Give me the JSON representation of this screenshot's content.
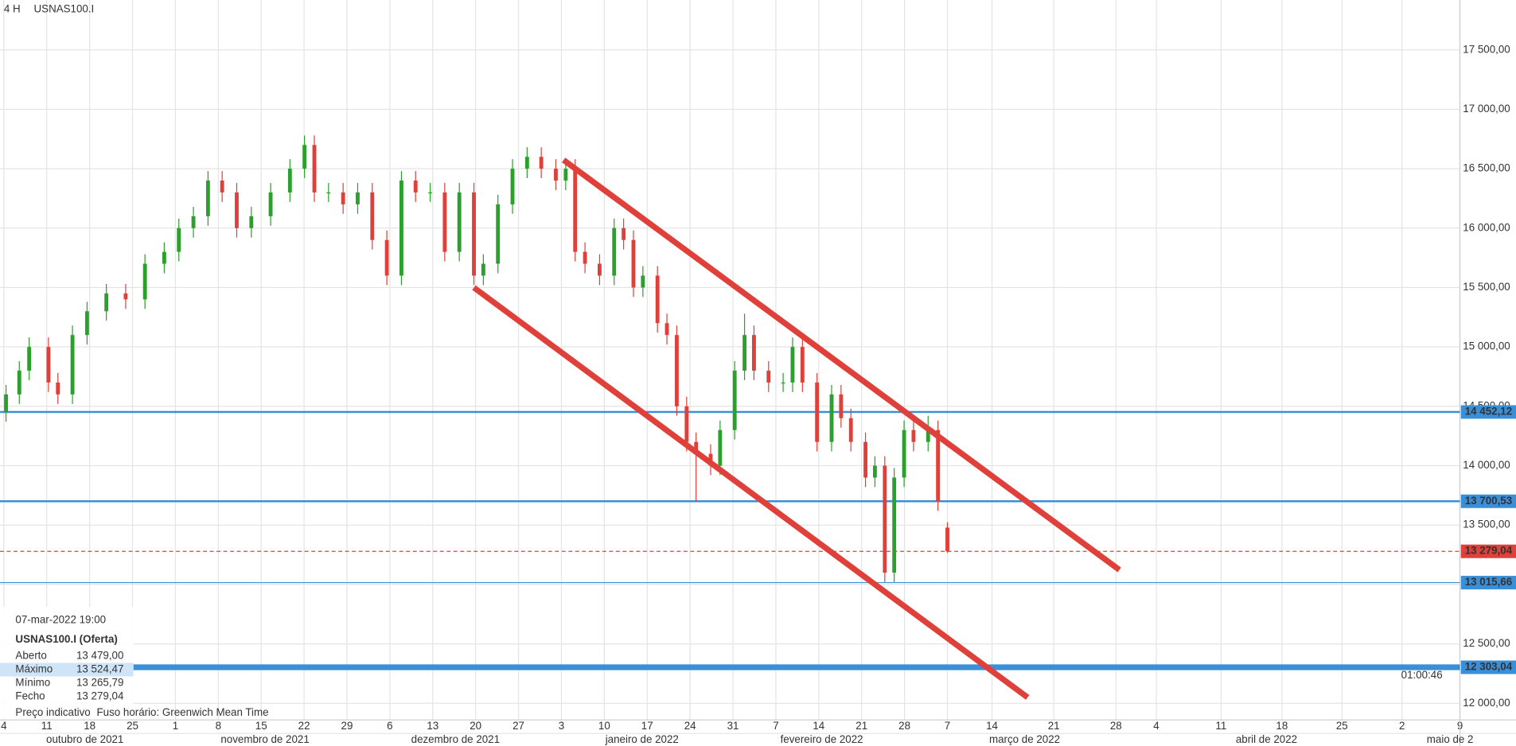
{
  "chart_data": {
    "type": "candlestick",
    "interval": "4 H",
    "title": "USNAS100.I",
    "up_color": "#2ca02c",
    "down_color": "#e0403a",
    "grid": true,
    "ylim": [
      11860,
      17920
    ],
    "yticks": [
      {
        "value": 12000,
        "label": "12 000,00"
      },
      {
        "value": 12500,
        "label": "12 500,00"
      },
      {
        "value": 13000,
        "label": "13 000,00"
      },
      {
        "value": 13500,
        "label": "13 500,00"
      },
      {
        "value": 14000,
        "label": "14 000,00"
      },
      {
        "value": 14500,
        "label": "14 500,00"
      },
      {
        "value": 15000,
        "label": "15 000,00"
      },
      {
        "value": 15500,
        "label": "15 500,00"
      },
      {
        "value": 16000,
        "label": "16 000,00"
      },
      {
        "value": 16500,
        "label": "16 500,00"
      },
      {
        "value": 17000,
        "label": "17 000,00"
      },
      {
        "value": 17500,
        "label": "17 500,00"
      }
    ],
    "xlim": [
      -0.09,
      33.95
    ],
    "xticks": [
      {
        "value": 0,
        "label": "4"
      },
      {
        "value": 1,
        "label": "11"
      },
      {
        "value": 2,
        "label": "18"
      },
      {
        "value": 3,
        "label": "25"
      },
      {
        "value": 4,
        "label": "1"
      },
      {
        "value": 5,
        "label": "8"
      },
      {
        "value": 6,
        "label": "15"
      },
      {
        "value": 7,
        "label": "22"
      },
      {
        "value": 8,
        "label": "29"
      },
      {
        "value": 9,
        "label": "6"
      },
      {
        "value": 10,
        "label": "13"
      },
      {
        "value": 11,
        "label": "20"
      },
      {
        "value": 12,
        "label": "27"
      },
      {
        "value": 13,
        "label": "3"
      },
      {
        "value": 14,
        "label": "10"
      },
      {
        "value": 15,
        "label": "17"
      },
      {
        "value": 16,
        "label": "24"
      },
      {
        "value": 17,
        "label": "31"
      },
      {
        "value": 18,
        "label": "7"
      },
      {
        "value": 19,
        "label": "14"
      },
      {
        "value": 20,
        "label": "21"
      },
      {
        "value": 21,
        "label": "28"
      },
      {
        "value": 22,
        "label": "7"
      },
      {
        "value": 23.04,
        "label": "14"
      },
      {
        "value": 24.48,
        "label": "21"
      },
      {
        "value": 25.93,
        "label": "28"
      },
      {
        "value": 26.87,
        "label": "4"
      },
      {
        "value": 28.38,
        "label": "11"
      },
      {
        "value": 29.8,
        "label": "18"
      },
      {
        "value": 31.2,
        "label": "25"
      },
      {
        "value": 32.6,
        "label": "2"
      },
      {
        "value": 33.95,
        "label": "9"
      }
    ],
    "month_labels": [
      {
        "value": 1.89,
        "label": "outubro de 2021"
      },
      {
        "value": 6.09,
        "label": "novembro de 2021"
      },
      {
        "value": 10.53,
        "label": "dezembro de 2021"
      },
      {
        "value": 14.88,
        "label": "janeiro de 2022"
      },
      {
        "value": 19.07,
        "label": "fevereiro de 2022"
      },
      {
        "value": 23.8,
        "label": "março de 2022"
      },
      {
        "value": 29.44,
        "label": "abril de 2022"
      },
      {
        "value": 33.72,
        "label": "maio de 2"
      }
    ],
    "x": [
      0.05,
      0.36,
      0.59,
      1.04,
      1.26,
      1.6,
      1.94,
      2.39,
      2.84,
      3.29,
      3.74,
      4.08,
      4.42,
      4.76,
      5.09,
      5.43,
      5.77,
      6.22,
      6.67,
      7.01,
      7.24,
      7.57,
      7.91,
      8.25,
      8.59,
      8.93,
      9.27,
      9.6,
      9.94,
      10.28,
      10.62,
      10.96,
      11.18,
      11.52,
      11.86,
      12.2,
      12.53,
      12.87,
      13.1,
      13.32,
      13.55,
      13.89,
      14.23,
      14.45,
      14.68,
      14.9,
      15.24,
      15.46,
      15.69,
      15.92,
      16.14,
      16.48,
      16.7,
      17.04,
      17.27,
      17.49,
      17.83,
      18.17,
      18.39,
      18.62,
      18.96,
      19.3,
      19.52,
      19.75,
      20.09,
      20.31,
      20.54,
      20.76,
      20.99,
      21.21,
      21.55,
      21.78,
      22.0
    ],
    "open": [
      14450,
      14600,
      14800,
      15000,
      14700,
      14600,
      15100,
      15300,
      15450,
      15400,
      15700,
      15800,
      16000,
      16100,
      16400,
      16300,
      16000,
      16100,
      16300,
      16500,
      16700,
      16300,
      16300,
      16200,
      16300,
      15900,
      15600,
      16400,
      16300,
      16300,
      15800,
      16300,
      15600,
      15700,
      16200,
      16500,
      16600,
      16500,
      16400,
      16500,
      15800,
      15700,
      15600,
      16000,
      15900,
      15500,
      15600,
      15200,
      15100,
      14500,
      14200,
      14100,
      14000,
      14300,
      14800,
      15100,
      14800,
      14700,
      14700,
      15000,
      14700,
      14200,
      14600,
      14400,
      14200,
      13900,
      14000,
      13100,
      13900,
      14300,
      14200,
      14300,
      13479.0
    ],
    "high": [
      14680,
      14880,
      15080,
      15080,
      14780,
      15180,
      15380,
      15530,
      15530,
      15780,
      15880,
      16080,
      16180,
      16480,
      16480,
      16380,
      16180,
      16380,
      16580,
      16780,
      16780,
      16380,
      16380,
      16380,
      16380,
      15980,
      16480,
      16480,
      16380,
      16380,
      16380,
      16380,
      15780,
      16280,
      16580,
      16680,
      16680,
      16580,
      16580,
      16580,
      15880,
      15780,
      16080,
      16080,
      15980,
      15680,
      15680,
      15280,
      15180,
      14580,
      14280,
      14180,
      14380,
      14880,
      15280,
      15180,
      14880,
      14780,
      15080,
      15080,
      14780,
      14680,
      14680,
      14480,
      14280,
      14080,
      14080,
      13980,
      14380,
      14380,
      14420,
      14380,
      13524.47
    ],
    "low": [
      14370,
      14520,
      14720,
      14620,
      14520,
      14520,
      15020,
      15220,
      15320,
      15320,
      15620,
      15720,
      15920,
      16020,
      16220,
      15920,
      15920,
      16020,
      16220,
      16420,
      16220,
      16220,
      16120,
      16120,
      15820,
      15520,
      15520,
      16220,
      16220,
      15720,
      15720,
      15520,
      15520,
      15620,
      16120,
      16420,
      16420,
      16320,
      16320,
      15720,
      15620,
      15520,
      15520,
      15820,
      15420,
      15420,
      15120,
      15020,
      14420,
      14120,
      13700,
      13920,
      13920,
      14220,
      14720,
      14720,
      14620,
      14620,
      14620,
      14620,
      14120,
      14120,
      14320,
      14120,
      13820,
      13820,
      13020,
      13020,
      13820,
      14120,
      14120,
      13620,
      13265.79
    ],
    "close": [
      14600,
      14800,
      15000,
      14700,
      14600,
      15100,
      15300,
      15450,
      15400,
      15700,
      15800,
      16000,
      16100,
      16400,
      16300,
      16000,
      16100,
      16300,
      16500,
      16700,
      16300,
      16300,
      16200,
      16300,
      15900,
      15600,
      16400,
      16300,
      16300,
      15800,
      16300,
      15600,
      15700,
      16200,
      16500,
      16600,
      16500,
      16400,
      16500,
      15800,
      15700,
      15600,
      16000,
      15900,
      15500,
      15600,
      15200,
      15100,
      14500,
      14200,
      14100,
      14000,
      14300,
      14800,
      15100,
      14800,
      14700,
      14700,
      15000,
      14700,
      14200,
      14600,
      14400,
      14200,
      13900,
      14000,
      13100,
      13900,
      14300,
      14200,
      14300,
      13700,
      13279.04
    ],
    "levels": [
      {
        "value": 14452.12,
        "label": "14 452,12",
        "color": "#3a8fd9",
        "style": "medium"
      },
      {
        "value": 13700.53,
        "label": "13 700,53",
        "color": "#3a8fd9",
        "style": "medium"
      },
      {
        "value": 13279.04,
        "label": "13 279,04",
        "color": "#e0403a",
        "style": "dashed"
      },
      {
        "value": 13015.66,
        "label": "13 015,66",
        "color": "#3a8fd9",
        "style": "thin"
      },
      {
        "value": 12303.04,
        "label": "12 303,04",
        "color": "#3a8fd9",
        "style": "thick"
      }
    ],
    "trendlines": [
      {
        "color": "#e0403a",
        "x": [
          13.05,
          26.01
        ],
        "y": [
          16573,
          13123
        ]
      },
      {
        "color": "#e0403a",
        "x": [
          10.96,
          23.87
        ],
        "y": [
          15499,
          12049
        ]
      }
    ],
    "timer": "01:00:46"
  },
  "info_panel": {
    "datetime": "07-mar-2022 19:00",
    "instrument": "USNAS100.I (Oferta)",
    "rows": [
      [
        "Aberto",
        "13 479,00"
      ],
      [
        "Máximo",
        "13 524,47"
      ],
      [
        "Mínimo",
        "13 265,79"
      ],
      [
        "Fecho",
        "13 279,04"
      ]
    ],
    "footer": [
      "Preço indicativo",
      "Fuso horário: Greenwich Mean Time"
    ]
  }
}
